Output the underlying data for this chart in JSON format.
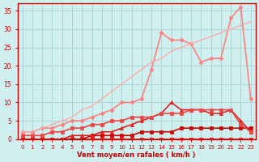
{
  "title": "",
  "xlabel": "Vent moyen/en rafales ( km/h )",
  "ylabel": "",
  "background_color": "#d0f0f0",
  "grid_color": "#b0d8d8",
  "x_values": [
    0,
    1,
    2,
    3,
    4,
    5,
    6,
    7,
    8,
    9,
    10,
    11,
    12,
    13,
    14,
    15,
    16,
    17,
    18,
    19,
    20,
    21,
    22,
    23
  ],
  "series": [
    {
      "color": "#ff0000",
      "linewidth": 1.2,
      "marker": "s",
      "markersize": 2.5,
      "data": [
        0,
        0,
        0,
        0,
        0,
        0,
        0,
        0,
        0,
        0,
        0,
        0,
        0,
        0,
        0,
        0,
        0,
        0,
        0,
        0,
        0,
        0,
        0,
        0
      ]
    },
    {
      "color": "#cc0000",
      "linewidth": 1.2,
      "marker": "s",
      "markersize": 2.5,
      "data": [
        0,
        0,
        0,
        0,
        0,
        0,
        0,
        1,
        1,
        1,
        1,
        1,
        2,
        2,
        2,
        2,
        3,
        3,
        3,
        3,
        3,
        3,
        3,
        3
      ]
    },
    {
      "color": "#dd2222",
      "linewidth": 1.2,
      "marker": "^",
      "markersize": 3,
      "data": [
        0,
        0,
        0,
        0,
        0,
        1,
        1,
        1,
        2,
        2,
        3,
        4,
        5,
        6,
        7,
        10,
        8,
        8,
        8,
        7,
        7,
        8,
        5,
        2
      ]
    },
    {
      "color": "#ee4444",
      "linewidth": 1.2,
      "marker": "s",
      "markersize": 2.5,
      "data": [
        1,
        1,
        1,
        2,
        2,
        3,
        3,
        4,
        4,
        5,
        5,
        6,
        6,
        6,
        7,
        7,
        7,
        8,
        8,
        8,
        8,
        8,
        4,
        2
      ]
    },
    {
      "color": "#ff8080",
      "linewidth": 1.2,
      "marker": "D",
      "markersize": 2.5,
      "data": [
        2,
        2,
        3,
        3,
        4,
        5,
        5,
        6,
        7,
        8,
        10,
        10,
        11,
        19,
        29,
        27,
        27,
        26,
        21,
        22,
        22,
        33,
        36,
        11
      ]
    },
    {
      "color": "#ffaaaa",
      "linewidth": 1.0,
      "marker": null,
      "markersize": 0,
      "data": [
        2,
        2,
        3,
        4,
        5,
        6,
        8,
        9,
        11,
        13,
        15,
        17,
        19,
        21,
        22,
        24,
        25,
        26,
        27,
        28,
        29,
        30,
        31,
        32
      ]
    }
  ],
  "xlim": [
    -0.5,
    23.5
  ],
  "ylim": [
    0,
    37
  ],
  "yticks": [
    0,
    5,
    10,
    15,
    20,
    25,
    30,
    35
  ],
  "xticks": [
    0,
    1,
    2,
    3,
    4,
    5,
    6,
    7,
    8,
    9,
    10,
    11,
    12,
    13,
    14,
    15,
    16,
    17,
    18,
    19,
    20,
    21,
    22,
    23
  ],
  "axis_color": "#cc0000",
  "tick_color": "#cc0000",
  "label_color": "#cc0000"
}
